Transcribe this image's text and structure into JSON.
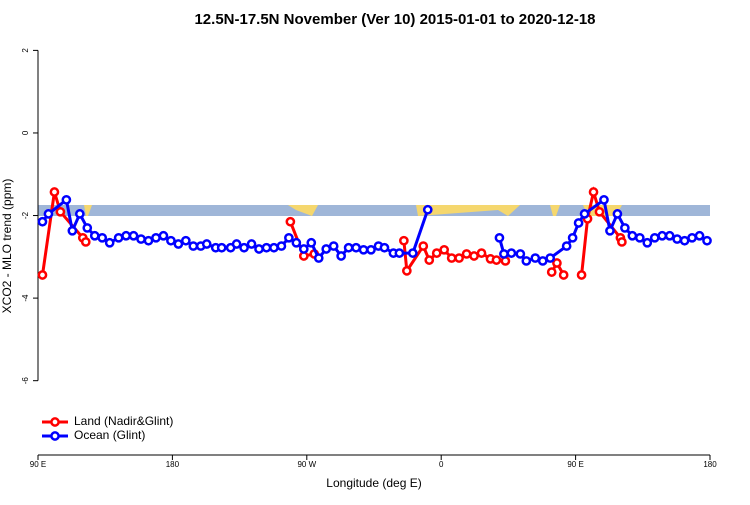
{
  "chart_data": {
    "type": "line",
    "title": "12.5N-17.5N November (Ver 10)   2015-01-01 to 2020-12-18",
    "x_label": "Longitude (deg E)",
    "y_label": "XCO2 - MLO trend (ppm)",
    "xlim": [
      90,
      540
    ],
    "ylim": [
      -7.8,
      2.3
    ],
    "xticks": [
      {
        "value": 90,
        "label": "90 E"
      },
      180,
      {
        "value": 270,
        "label": "90 W"
      },
      {
        "value": 360,
        "label": "0"
      },
      {
        "value": 450,
        "label": "90 E"
      },
      {
        "value": 540,
        "label": "180"
      }
    ],
    "yticks": [
      2,
      0,
      -2,
      -4,
      -6
    ],
    "legend": "bottom-left",
    "series": [
      {
        "name": "Land (Nadir&Glint)",
        "color": "#ff0000",
        "x": [
          93,
          101,
          105,
          120,
          122,
          null,
          259,
          268,
          275,
          null,
          335,
          337,
          348,
          352,
          357,
          362,
          367,
          372,
          377,
          382,
          387,
          393,
          397,
          403,
          null,
          434,
          437.5,
          442,
          null,
          454,
          458,
          462,
          466,
          480,
          481
        ],
        "values": [
          -3.44,
          -1.43,
          -1.91,
          -2.54,
          -2.64,
          null,
          -2.15,
          -2.98,
          -2.93,
          null,
          -2.61,
          -3.34,
          -2.74,
          -3.08,
          -2.91,
          -2.83,
          -3.03,
          -3.03,
          -2.93,
          -2.98,
          -2.91,
          -3.05,
          -3.08,
          -3.1,
          null,
          -3.37,
          -3.15,
          -3.44,
          null,
          -3.44,
          -2.08,
          -1.43,
          -1.91,
          -2.54,
          -2.64
        ]
      },
      {
        "name": "Ocean (Glint)",
        "color": "#0000ff",
        "x": [
          93,
          97,
          109,
          113,
          118,
          123,
          128,
          133,
          138,
          144,
          149,
          154,
          159,
          164,
          169,
          174,
          179,
          184,
          189,
          194,
          199,
          203,
          209,
          213,
          219,
          223,
          228,
          233,
          238,
          243,
          248,
          253,
          258,
          263,
          268,
          273,
          278,
          283,
          288,
          293,
          298,
          303,
          308,
          313,
          318,
          322,
          328,
          332,
          341,
          351,
          null,
          399,
          402,
          407,
          413,
          417,
          423,
          428,
          433,
          444,
          448,
          452,
          456,
          469,
          473,
          478,
          483,
          488,
          493,
          498,
          503,
          508,
          513,
          518,
          523,
          528,
          533,
          538
        ],
        "values": [
          -2.15,
          -1.96,
          -1.62,
          -2.37,
          -1.96,
          -2.3,
          -2.49,
          -2.54,
          -2.66,
          -2.54,
          -2.49,
          -2.49,
          -2.57,
          -2.61,
          -2.54,
          -2.49,
          -2.61,
          -2.69,
          -2.61,
          -2.74,
          -2.74,
          -2.69,
          -2.78,
          -2.78,
          -2.78,
          -2.69,
          -2.78,
          -2.69,
          -2.81,
          -2.78,
          -2.78,
          -2.74,
          -2.54,
          -2.66,
          -2.81,
          -2.66,
          -3.03,
          -2.81,
          -2.74,
          -2.98,
          -2.78,
          -2.78,
          -2.83,
          -2.83,
          -2.74,
          -2.78,
          -2.91,
          -2.91,
          -2.91,
          -1.86,
          null,
          -2.54,
          -2.93,
          -2.91,
          -2.93,
          -3.1,
          -3.03,
          -3.1,
          -3.03,
          -2.74,
          -2.54,
          -2.18,
          -1.96,
          -1.62,
          -2.37,
          -1.96,
          -2.3,
          -2.49,
          -2.54,
          -2.66,
          -2.54,
          -2.49,
          -2.49,
          -2.57,
          -2.61,
          -2.54,
          -2.49,
          -2.61
        ]
      }
    ]
  }
}
